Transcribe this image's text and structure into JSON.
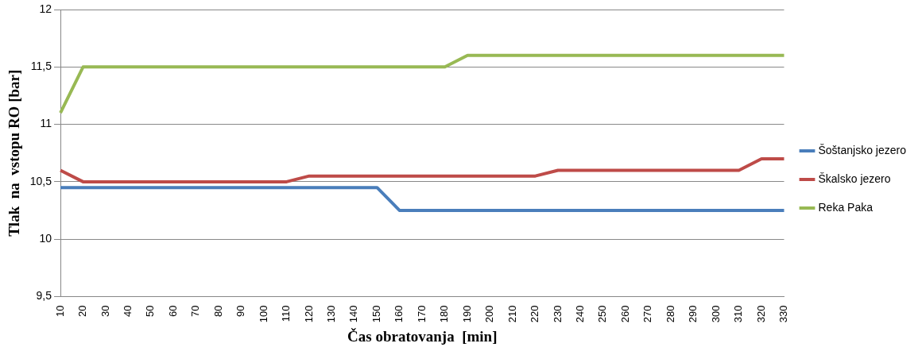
{
  "chart_data": {
    "type": "line",
    "xlabel": "Čas obratovanja  [min]",
    "ylabel": "Tlak  na  vstopu RO [bar]",
    "categories": [
      "10",
      "20",
      "30",
      "40",
      "50",
      "60",
      "70",
      "80",
      "90",
      "100",
      "110",
      "120",
      "130",
      "140",
      "150",
      "160",
      "170",
      "180",
      "190",
      "200",
      "210",
      "220",
      "230",
      "240",
      "250",
      "260",
      "270",
      "280",
      "290",
      "300",
      "310",
      "320",
      "330"
    ],
    "series": [
      {
        "name": "Šoštanjsko jezero",
        "color": "#4a7ebb",
        "values": [
          10.45,
          10.45,
          10.45,
          10.45,
          10.45,
          10.45,
          10.45,
          10.45,
          10.45,
          10.45,
          10.45,
          10.45,
          10.45,
          10.45,
          10.45,
          10.25,
          10.25,
          10.25,
          10.25,
          10.25,
          10.25,
          10.25,
          10.25,
          10.25,
          10.25,
          10.25,
          10.25,
          10.25,
          10.25,
          10.25,
          10.25,
          10.25,
          10.25
        ]
      },
      {
        "name": "Škalsko jezero",
        "color": "#be4b48",
        "values": [
          10.6,
          10.5,
          10.5,
          10.5,
          10.5,
          10.5,
          10.5,
          10.5,
          10.5,
          10.5,
          10.5,
          10.55,
          10.55,
          10.55,
          10.55,
          10.55,
          10.55,
          10.55,
          10.55,
          10.55,
          10.55,
          10.55,
          10.6,
          10.6,
          10.6,
          10.6,
          10.6,
          10.6,
          10.6,
          10.6,
          10.6,
          10.7,
          10.7
        ]
      },
      {
        "name": "Reka Paka",
        "color": "#98b954",
        "values": [
          11.1,
          11.5,
          11.5,
          11.5,
          11.5,
          11.5,
          11.5,
          11.5,
          11.5,
          11.5,
          11.5,
          11.5,
          11.5,
          11.5,
          11.5,
          11.5,
          11.5,
          11.5,
          11.6,
          11.6,
          11.6,
          11.6,
          11.6,
          11.6,
          11.6,
          11.6,
          11.6,
          11.6,
          11.6,
          11.6,
          11.6,
          11.6,
          11.6
        ]
      }
    ],
    "ylim": [
      9.5,
      12
    ],
    "yticks": [
      {
        "value": 9.5,
        "label": "9,5"
      },
      10,
      {
        "value": 10.5,
        "label": "10,5"
      },
      11,
      {
        "value": 11.5,
        "label": "11,5"
      },
      12
    ],
    "grid": "y",
    "legend": "right",
    "marker": "none",
    "line_style": "solid"
  }
}
